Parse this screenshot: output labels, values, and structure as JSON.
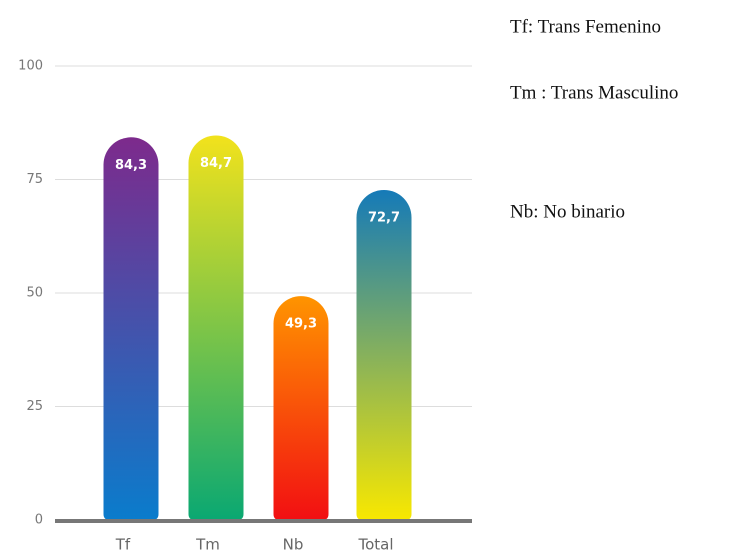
{
  "chart_data": {
    "type": "bar",
    "categories": [
      "Tf",
      "Tm",
      "Nb",
      "Total"
    ],
    "values": [
      84.3,
      84.7,
      49.3,
      72.7
    ],
    "value_labels": [
      "84,3",
      "84,7",
      "49,3",
      "72,7"
    ],
    "colors": [
      [
        "#7d2a8c",
        "#0a7ccc"
      ],
      [
        "#f2e21c",
        "#0aa872"
      ],
      [
        "#ff9400",
        "#f20f12"
      ],
      [
        "#157ab8",
        "#f8e800"
      ]
    ],
    "ylim": [
      0,
      100
    ],
    "yticks": [
      0,
      25,
      50,
      75,
      100
    ],
    "grid": true,
    "notes": [
      "Tf: Trans Femenino",
      "Tm : Trans Masculino",
      "Nb: No binario"
    ]
  }
}
